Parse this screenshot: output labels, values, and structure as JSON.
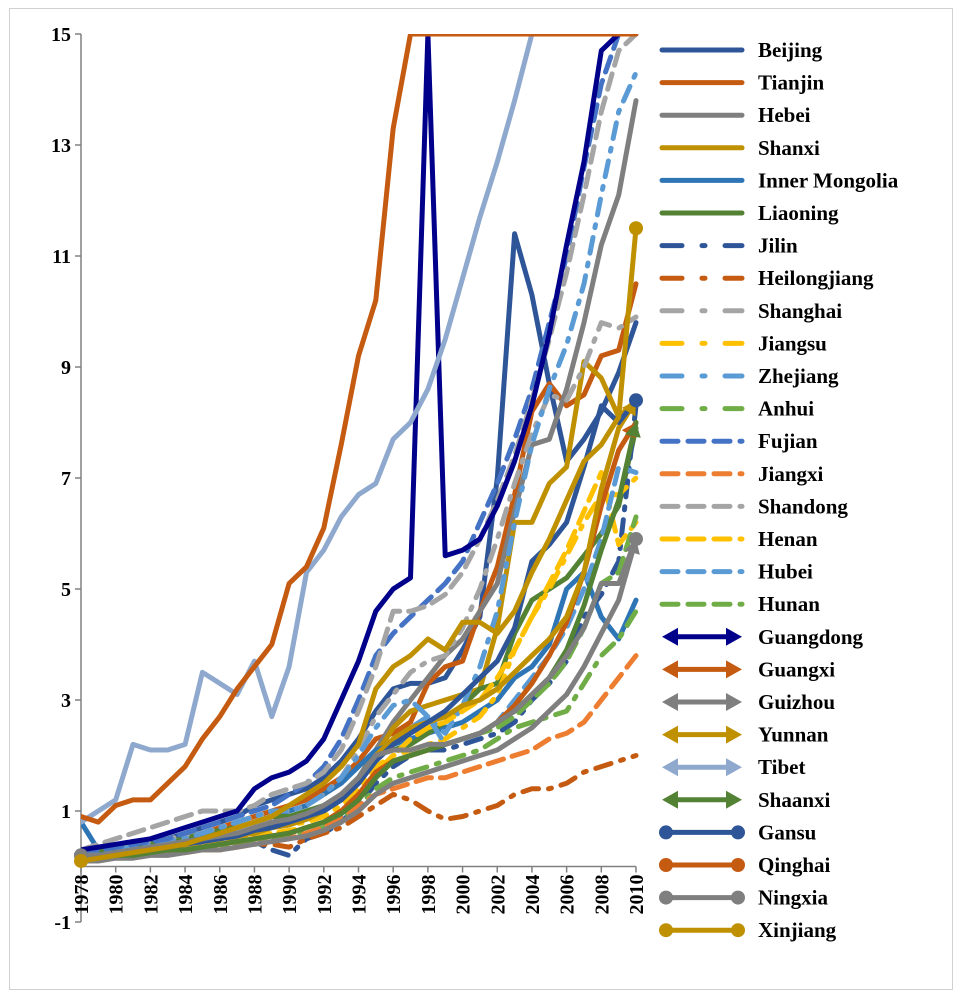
{
  "chart_data": {
    "type": "line",
    "title": "",
    "xlabel": "",
    "ylabel": "",
    "ylim": [
      -1,
      15
    ],
    "xlim": [
      1978,
      2010
    ],
    "yticks": [
      -1,
      1,
      3,
      5,
      7,
      9,
      11,
      13,
      15
    ],
    "xticks": [
      1978,
      1980,
      1982,
      1984,
      1986,
      1988,
      1990,
      1992,
      1994,
      1996,
      1998,
      2000,
      2002,
      2004,
      2006,
      2008,
      2010
    ],
    "grid": false,
    "legend_position": "right",
    "years": [
      1978,
      1979,
      1980,
      1981,
      1982,
      1983,
      1984,
      1985,
      1986,
      1987,
      1988,
      1989,
      1990,
      1991,
      1992,
      1993,
      1994,
      1995,
      1996,
      1997,
      1998,
      1999,
      2000,
      2001,
      2002,
      2003,
      2004,
      2005,
      2006,
      2007,
      2008,
      2009,
      2010
    ],
    "series": [
      {
        "name": "Beijing",
        "color": "#2e5597",
        "style": "solid",
        "marker": "none",
        "values": [
          0.3,
          0.3,
          0.35,
          0.4,
          0.45,
          0.5,
          0.6,
          0.7,
          0.8,
          0.9,
          1.1,
          1.2,
          1.3,
          1.4,
          1.6,
          1.9,
          2.3,
          2.8,
          3.2,
          3.3,
          3.3,
          3.4,
          3.9,
          4.5,
          7.0,
          11.4,
          10.3,
          8.7,
          7.3,
          7.7,
          8.2,
          8.9,
          9.8
        ]
      },
      {
        "name": "Tianjin",
        "color": "#c55a11",
        "style": "solid",
        "marker": "none",
        "values": [
          0.3,
          0.3,
          0.35,
          0.35,
          0.4,
          0.45,
          0.5,
          0.6,
          0.7,
          0.8,
          0.9,
          1.0,
          1.1,
          1.2,
          1.4,
          1.6,
          1.9,
          2.3,
          2.4,
          2.6,
          3.3,
          3.6,
          3.7,
          4.6,
          5.4,
          6.7,
          8.2,
          8.7,
          8.3,
          8.5,
          9.2,
          9.3,
          10.5
        ]
      },
      {
        "name": "Hebei",
        "color": "#7f7f7f",
        "style": "solid",
        "marker": "none",
        "values": [
          0.2,
          0.25,
          0.3,
          0.3,
          0.35,
          0.4,
          0.45,
          0.5,
          0.55,
          0.6,
          0.7,
          0.8,
          0.85,
          0.95,
          1.1,
          1.3,
          1.6,
          2.1,
          2.6,
          3.0,
          3.4,
          3.8,
          4.1,
          4.6,
          5.1,
          6.4,
          7.6,
          7.7,
          8.6,
          9.8,
          11.2,
          12.1,
          13.8
        ]
      },
      {
        "name": "Shanxi",
        "color": "#bf9000",
        "style": "solid",
        "marker": "none",
        "values": [
          0.2,
          0.2,
          0.25,
          0.3,
          0.3,
          0.35,
          0.4,
          0.45,
          0.5,
          0.55,
          0.65,
          0.7,
          0.8,
          0.9,
          1.0,
          1.2,
          1.5,
          2.0,
          2.5,
          2.8,
          2.9,
          3.0,
          3.1,
          3.2,
          4.3,
          6.2,
          6.2,
          6.9,
          7.2,
          9.1,
          8.8,
          8.1,
          8.4
        ]
      },
      {
        "name": "Inner Mongolia",
        "color": "#2e75b6",
        "style": "solid",
        "marker": "none",
        "values": [
          0.8,
          0.3,
          0.25,
          0.3,
          0.35,
          0.4,
          0.45,
          0.55,
          0.6,
          0.7,
          0.8,
          0.9,
          1.0,
          1.1,
          1.3,
          1.5,
          1.8,
          2.1,
          2.2,
          2.3,
          2.4,
          2.5,
          2.6,
          2.8,
          3.0,
          3.4,
          3.6,
          4.0,
          5.0,
          5.3,
          4.5,
          4.1,
          4.8
        ]
      },
      {
        "name": "Liaoning",
        "color": "#548235",
        "style": "solid",
        "marker": "none",
        "values": [
          0.3,
          0.3,
          0.35,
          0.4,
          0.4,
          0.45,
          0.5,
          0.6,
          0.65,
          0.7,
          0.8,
          0.9,
          0.9,
          1.0,
          1.1,
          1.3,
          1.6,
          2.0,
          2.1,
          2.2,
          2.4,
          2.6,
          2.9,
          3.2,
          3.3,
          4.2,
          4.8,
          5.0,
          5.2,
          5.6,
          6.0,
          6.5,
          7.9
        ]
      },
      {
        "name": "Jilin",
        "color": "#2e5597",
        "style": "dashdot",
        "marker": "none",
        "values": [
          0.2,
          0.2,
          0.25,
          0.25,
          0.3,
          0.3,
          0.35,
          0.35,
          0.4,
          0.4,
          0.45,
          0.3,
          0.2,
          0.5,
          0.6,
          0.8,
          1.1,
          1.5,
          1.8,
          2.0,
          2.1,
          2.1,
          2.2,
          2.3,
          2.4,
          2.6,
          3.0,
          3.3,
          3.7,
          4.5,
          4.9,
          5.5,
          8.3
        ]
      },
      {
        "name": "Heilongjiang",
        "color": "#c55a11",
        "style": "dashdot",
        "marker": "none",
        "values": [
          0.2,
          0.2,
          0.2,
          0.25,
          0.25,
          0.3,
          0.3,
          0.35,
          0.35,
          0.4,
          0.4,
          0.4,
          0.35,
          0.5,
          0.6,
          0.7,
          0.9,
          1.1,
          1.3,
          1.2,
          1.0,
          0.85,
          0.9,
          1.0,
          1.1,
          1.3,
          1.4,
          1.4,
          1.5,
          1.7,
          1.8,
          1.9,
          2.0
        ]
      },
      {
        "name": "Shanghai",
        "color": "#a5a5a5",
        "style": "dashdot",
        "marker": "none",
        "values": [
          0.3,
          0.3,
          0.35,
          0.4,
          0.45,
          0.5,
          0.55,
          0.6,
          0.7,
          0.8,
          0.9,
          1.0,
          1.0,
          1.1,
          1.3,
          1.6,
          2.1,
          2.7,
          3.1,
          3.5,
          3.7,
          3.8,
          4.3,
          5.0,
          5.9,
          6.9,
          7.8,
          8.5,
          8.4,
          9.0,
          9.8,
          9.7,
          9.9
        ]
      },
      {
        "name": "Jiangsu",
        "color": "#ffc000",
        "style": "dashdot",
        "marker": "none",
        "values": [
          0.2,
          0.2,
          0.25,
          0.3,
          0.3,
          0.35,
          0.4,
          0.45,
          0.5,
          0.55,
          0.65,
          0.7,
          0.75,
          0.8,
          0.9,
          1.1,
          1.4,
          1.8,
          2.0,
          2.1,
          2.2,
          2.3,
          2.5,
          2.7,
          3.1,
          3.9,
          4.5,
          5.0,
          5.6,
          6.2,
          6.7,
          6.7,
          7.0
        ]
      },
      {
        "name": "Zhejiang",
        "color": "#5b9bd5",
        "style": "dashdot",
        "marker": "none",
        "values": [
          0.2,
          0.25,
          0.3,
          0.35,
          0.4,
          0.45,
          0.5,
          0.6,
          0.7,
          0.8,
          0.9,
          1.0,
          1.0,
          1.1,
          1.3,
          1.6,
          2.0,
          2.5,
          2.9,
          3.0,
          2.7,
          2.4,
          2.9,
          3.6,
          4.6,
          6.2,
          7.6,
          8.6,
          9.4,
          10.5,
          12.1,
          13.6,
          14.3
        ]
      },
      {
        "name": "Anhui",
        "color": "#70ad47",
        "style": "dashdot",
        "marker": "none",
        "values": [
          0.15,
          0.15,
          0.2,
          0.2,
          0.25,
          0.25,
          0.3,
          0.3,
          0.35,
          0.4,
          0.45,
          0.5,
          0.55,
          0.6,
          0.7,
          0.85,
          1.1,
          1.4,
          1.6,
          1.7,
          1.8,
          1.9,
          2.0,
          2.1,
          2.3,
          2.5,
          2.6,
          2.7,
          2.8,
          3.3,
          3.8,
          4.1,
          4.6
        ]
      },
      {
        "name": "Fujian",
        "color": "#4472c4",
        "style": "dashed",
        "marker": "none",
        "values": [
          0.3,
          0.3,
          0.35,
          0.4,
          0.45,
          0.5,
          0.6,
          0.7,
          0.8,
          0.9,
          1.0,
          1.1,
          1.3,
          1.5,
          1.8,
          2.3,
          3.0,
          3.8,
          4.2,
          4.5,
          4.8,
          5.1,
          5.5,
          6.2,
          6.9,
          7.7,
          8.6,
          9.8,
          11.0,
          12.6,
          14.1,
          15.0,
          15.0
        ]
      },
      {
        "name": "Jiangxi",
        "color": "#ed7d31",
        "style": "dashed",
        "marker": "none",
        "values": [
          0.15,
          0.15,
          0.2,
          0.2,
          0.2,
          0.25,
          0.25,
          0.3,
          0.3,
          0.35,
          0.4,
          0.45,
          0.5,
          0.6,
          0.7,
          0.9,
          1.1,
          1.3,
          1.4,
          1.5,
          1.6,
          1.6,
          1.7,
          1.8,
          1.9,
          2.0,
          2.1,
          2.3,
          2.4,
          2.6,
          3.0,
          3.4,
          3.8
        ]
      },
      {
        "name": "Shandong",
        "color": "#a5a5a5",
        "style": "dashed",
        "marker": "none",
        "values": [
          0.3,
          0.4,
          0.5,
          0.6,
          0.7,
          0.8,
          0.9,
          1.0,
          1.0,
          1.0,
          1.1,
          1.3,
          1.4,
          1.5,
          1.7,
          2.1,
          2.8,
          3.6,
          4.6,
          4.6,
          4.7,
          4.9,
          5.3,
          5.9,
          6.6,
          7.4,
          8.4,
          9.5,
          10.7,
          12.1,
          13.6,
          14.7,
          15.0
        ]
      },
      {
        "name": "Henan",
        "color": "#ffc000",
        "style": "dashed",
        "marker": "none",
        "values": [
          0.15,
          0.15,
          0.2,
          0.2,
          0.25,
          0.3,
          0.35,
          0.4,
          0.45,
          0.5,
          0.55,
          0.6,
          0.65,
          0.7,
          0.8,
          1.0,
          1.3,
          1.7,
          2.0,
          2.3,
          2.5,
          2.6,
          2.8,
          3.0,
          3.4,
          3.9,
          4.5,
          5.1,
          5.7,
          6.4,
          7.1,
          5.8,
          6.2
        ]
      },
      {
        "name": "Hubei",
        "color": "#5b9bd5",
        "style": "dashed",
        "marker": "none",
        "values": [
          0.2,
          0.2,
          0.25,
          0.3,
          0.3,
          0.35,
          0.4,
          0.45,
          0.5,
          0.55,
          0.6,
          0.7,
          0.75,
          0.85,
          1.0,
          1.2,
          1.5,
          2.0,
          2.3,
          2.5,
          2.7,
          2.2,
          2.3,
          2.4,
          2.6,
          3.0,
          3.4,
          3.8,
          4.3,
          5.0,
          5.9,
          7.2,
          7.1
        ]
      },
      {
        "name": "Hunan",
        "color": "#70ad47",
        "style": "dashed",
        "marker": "none",
        "values": [
          0.15,
          0.15,
          0.2,
          0.2,
          0.25,
          0.25,
          0.3,
          0.35,
          0.4,
          0.45,
          0.5,
          0.55,
          0.6,
          0.7,
          0.8,
          1.0,
          1.3,
          1.6,
          1.9,
          2.0,
          2.1,
          2.2,
          2.3,
          2.4,
          2.5,
          2.7,
          3.0,
          3.3,
          3.7,
          4.3,
          5.1,
          5.3,
          6.3
        ]
      },
      {
        "name": "Guangdong",
        "color": "#00008b",
        "style": "solid",
        "marker": "arrow",
        "values": [
          0.3,
          0.35,
          0.4,
          0.45,
          0.5,
          0.6,
          0.7,
          0.8,
          0.9,
          1.0,
          1.4,
          1.6,
          1.7,
          1.9,
          2.3,
          3.0,
          3.7,
          4.6,
          5.0,
          5.2,
          15.0,
          5.6,
          5.7,
          5.9,
          6.5,
          7.3,
          8.3,
          9.6,
          11.2,
          12.7,
          14.7,
          15.0,
          15.0
        ]
      },
      {
        "name": "Guangxi",
        "color": "#c55a11",
        "style": "solid",
        "marker": "arrow",
        "values": [
          0.15,
          0.15,
          0.2,
          0.2,
          0.25,
          0.3,
          0.3,
          0.35,
          0.4,
          0.45,
          0.5,
          0.55,
          0.6,
          0.7,
          0.8,
          1.0,
          1.3,
          1.7,
          1.9,
          2.0,
          2.1,
          2.2,
          2.3,
          2.4,
          2.6,
          2.9,
          3.3,
          3.8,
          4.4,
          5.3,
          6.5,
          7.5,
          8.0
        ]
      },
      {
        "name": "Guizhou",
        "color": "#7f7f7f",
        "style": "solid",
        "marker": "arrow",
        "values": [
          0.1,
          0.1,
          0.15,
          0.15,
          0.2,
          0.2,
          0.25,
          0.3,
          0.3,
          0.35,
          0.4,
          0.45,
          0.5,
          0.55,
          0.65,
          0.8,
          1.0,
          1.3,
          1.5,
          1.6,
          1.7,
          1.8,
          1.9,
          2.0,
          2.1,
          2.3,
          2.5,
          2.8,
          3.1,
          3.6,
          4.2,
          4.8,
          5.9
        ]
      },
      {
        "name": "Yunnan",
        "color": "#bf9000",
        "style": "solid",
        "marker": "arrow",
        "values": [
          0.2,
          0.2,
          0.25,
          0.3,
          0.3,
          0.35,
          0.4,
          0.45,
          0.5,
          0.55,
          0.6,
          0.7,
          0.75,
          0.85,
          1.0,
          1.2,
          1.5,
          2.0,
          2.3,
          2.5,
          2.6,
          2.7,
          2.9,
          3.0,
          3.2,
          3.5,
          3.8,
          4.1,
          4.5,
          5.3,
          6.8,
          7.9,
          8.4
        ]
      },
      {
        "name": "Tibet",
        "color": "#8ea9cd",
        "style": "solid",
        "marker": "arrow",
        "values": [
          0.8,
          1.0,
          1.2,
          2.2,
          2.1,
          2.1,
          2.2,
          3.5,
          3.3,
          3.1,
          3.7,
          2.7,
          3.6,
          5.3,
          5.7,
          6.3,
          6.7,
          6.9,
          7.7,
          8.0,
          8.6,
          9.5,
          10.6,
          11.7,
          12.7,
          13.8,
          15.0,
          15.0,
          15.0,
          15.0,
          15.0,
          15.0,
          15.0
        ]
      },
      {
        "name": "Shaanxi",
        "color": "#548235",
        "style": "solid",
        "marker": "arrow",
        "values": [
          0.15,
          0.15,
          0.2,
          0.2,
          0.25,
          0.3,
          0.3,
          0.35,
          0.4,
          0.45,
          0.5,
          0.55,
          0.6,
          0.7,
          0.8,
          0.95,
          1.2,
          1.6,
          1.9,
          2.0,
          2.1,
          2.2,
          2.3,
          2.4,
          2.6,
          2.8,
          3.1,
          3.4,
          3.9,
          4.7,
          5.7,
          6.6,
          8.0
        ]
      },
      {
        "name": "Gansu",
        "color": "#2e5597",
        "style": "solid",
        "marker": "circle",
        "values": [
          0.2,
          0.2,
          0.25,
          0.3,
          0.3,
          0.35,
          0.4,
          0.45,
          0.5,
          0.55,
          0.65,
          0.7,
          0.8,
          0.9,
          1.0,
          1.2,
          1.5,
          1.9,
          2.2,
          2.4,
          2.6,
          2.8,
          3.1,
          3.4,
          3.7,
          4.3,
          5.5,
          5.8,
          6.2,
          7.2,
          8.3,
          8.0,
          8.4
        ]
      },
      {
        "name": "Qinghai",
        "color": "#c55a11",
        "style": "solid",
        "marker": "circle",
        "values": [
          0.9,
          0.8,
          1.1,
          1.2,
          1.2,
          1.5,
          1.8,
          2.3,
          2.7,
          3.2,
          3.6,
          4.0,
          5.1,
          5.4,
          6.1,
          7.6,
          9.2,
          10.2,
          13.3,
          15.0,
          15.0,
          15.0,
          15.0,
          15.0,
          15.0,
          15.0,
          15.0,
          15.0,
          15.0,
          15.0,
          15.0,
          15.0,
          15.0
        ]
      },
      {
        "name": "Ningxia",
        "color": "#7f7f7f",
        "style": "solid",
        "marker": "circle",
        "values": [
          0.2,
          0.2,
          0.25,
          0.3,
          0.35,
          0.4,
          0.45,
          0.5,
          0.55,
          0.6,
          0.7,
          0.8,
          0.85,
          0.95,
          1.1,
          1.3,
          1.6,
          2.0,
          2.1,
          2.1,
          2.2,
          2.2,
          2.3,
          2.4,
          2.6,
          2.8,
          3.1,
          3.4,
          3.8,
          4.3,
          5.1,
          5.1,
          5.9
        ]
      },
      {
        "name": "Xinjiang",
        "color": "#bf9000",
        "style": "solid",
        "marker": "circle",
        "values": [
          0.1,
          0.15,
          0.2,
          0.25,
          0.3,
          0.35,
          0.4,
          0.5,
          0.6,
          0.7,
          0.8,
          0.9,
          1.1,
          1.3,
          1.5,
          1.8,
          2.2,
          3.2,
          3.6,
          3.8,
          4.1,
          3.9,
          4.4,
          4.4,
          4.2,
          4.6,
          5.3,
          5.9,
          6.6,
          7.3,
          7.6,
          8.1,
          11.5
        ]
      }
    ]
  }
}
